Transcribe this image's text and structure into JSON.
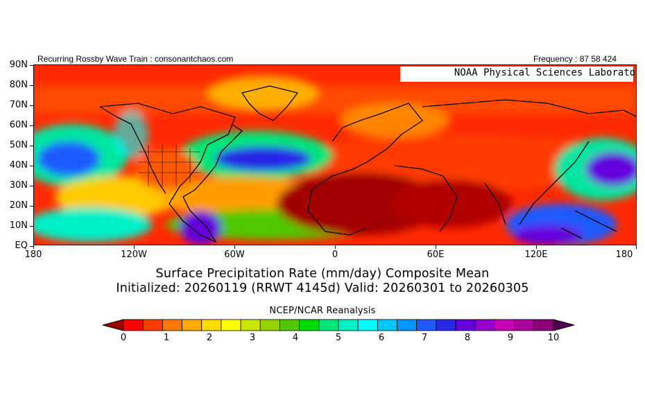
{
  "header": {
    "left_text": "Recurring Rossby Wave Train : consonantchaos.com",
    "right_text": "Frequency : 87 58 424"
  },
  "map": {
    "badge": "NOAA Physical Sciences Laboratory",
    "lat_labels": [
      "90N",
      "80N",
      "70N",
      "60N",
      "50N",
      "40N",
      "30N",
      "20N",
      "10N",
      "EQ"
    ],
    "lon_labels": [
      "180",
      "120W",
      "60W",
      "0",
      "60E",
      "120E",
      "180"
    ]
  },
  "titles": {
    "line1": "Surface Precipitation Rate (mm/day) Composite Mean",
    "line2": "Initialized: 20260119 (RRWT 4145d) Valid: 20260301 to 20260305",
    "line3": "NCEP/NCAR Reanalysis"
  },
  "colorbar": {
    "labels": [
      "0",
      "1",
      "2",
      "3",
      "4",
      "5",
      "6",
      "7",
      "8",
      "9",
      "10"
    ],
    "colors": [
      "#a00000",
      "#ff0000",
      "#ff3c00",
      "#ff7800",
      "#ffaa00",
      "#ffdc00",
      "#ffff00",
      "#c8e600",
      "#96d200",
      "#50c800",
      "#00dc00",
      "#00e678",
      "#00f0c8",
      "#00ffff",
      "#00c8ff",
      "#0096ff",
      "#1e5aff",
      "#2828e6",
      "#6400dc",
      "#9600c8",
      "#c800b4",
      "#aa009b",
      "#8c0078",
      "#500050"
    ]
  }
}
